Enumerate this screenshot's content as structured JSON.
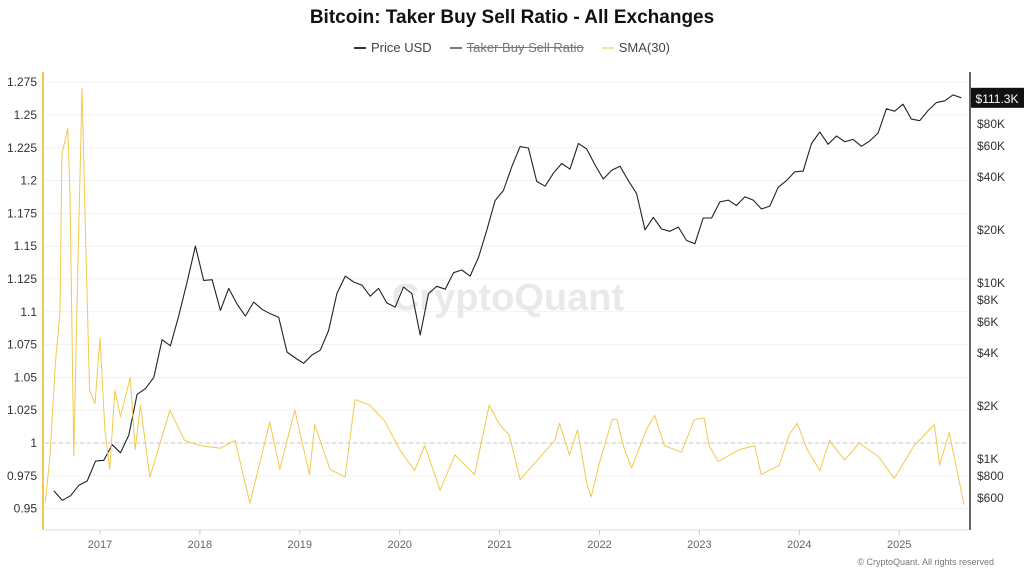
{
  "chart_data": {
    "type": "line",
    "title": "Bitcoin: Taker Buy Sell Ratio - All Exchanges",
    "legend": [
      {
        "name": "Price USD",
        "color": "#333333",
        "hidden": false
      },
      {
        "name": "Taker Buy Sell Ratio",
        "color": "#555555",
        "hidden": true
      },
      {
        "name": "SMA(30)",
        "color": "#f2c94c",
        "hidden": false
      }
    ],
    "legend_placement": "top-center",
    "watermark": "CryptoQuant",
    "copyright": "© CryptoQuant. All rights reserved",
    "x_ticks": [
      "2017",
      "2018",
      "2019",
      "2020",
      "2021",
      "2022",
      "2023",
      "2024",
      "2025"
    ],
    "left_axis": {
      "ticks": [
        "0.95",
        "0.975",
        "1",
        "1.025",
        "1.05",
        "1.075",
        "1.1",
        "1.125",
        "1.15",
        "1.175",
        "1.2",
        "1.225",
        "1.25",
        "1.275"
      ],
      "range": [
        0.94,
        1.29
      ],
      "reference_line": 1
    },
    "right_axis": {
      "scale": "log",
      "ticks": [
        {
          "label": "$600",
          "value": 600
        },
        {
          "label": "$800",
          "value": 800
        },
        {
          "label": "$1K",
          "value": 1000
        },
        {
          "label": "$2K",
          "value": 2000
        },
        {
          "label": "$4K",
          "value": 4000
        },
        {
          "label": "$6K",
          "value": 6000
        },
        {
          "label": "$8K",
          "value": 8000
        },
        {
          "label": "$10K",
          "value": 10000
        },
        {
          "label": "$20K",
          "value": 20000
        },
        {
          "label": "$40K",
          "value": 40000
        },
        {
          "label": "$60K",
          "value": 60000
        },
        {
          "label": "$80K",
          "value": 80000
        }
      ],
      "current_label": "$111.3K",
      "current_value": 111300
    },
    "grid": true,
    "series": [
      {
        "name": "Price USD",
        "axis": "right",
        "points": [
          [
            "2016-07",
            650
          ],
          [
            "2016-08",
            575
          ],
          [
            "2016-09",
            610
          ],
          [
            "2016-10",
            700
          ],
          [
            "2016-11",
            740
          ],
          [
            "2016-12",
            960
          ],
          [
            "2017-01",
            970
          ],
          [
            "2017-02",
            1190
          ],
          [
            "2017-03",
            1070
          ],
          [
            "2017-04",
            1350
          ],
          [
            "2017-05",
            2300
          ],
          [
            "2017-06",
            2480
          ],
          [
            "2017-07",
            2870
          ],
          [
            "2017-08",
            4700
          ],
          [
            "2017-09",
            4340
          ],
          [
            "2017-10",
            6450
          ],
          [
            "2017-11",
            10000
          ],
          [
            "2017-12",
            16000
          ],
          [
            "2018-01",
            10200
          ],
          [
            "2018-02",
            10300
          ],
          [
            "2018-03",
            6900
          ],
          [
            "2018-04",
            9200
          ],
          [
            "2018-05",
            7500
          ],
          [
            "2018-06",
            6400
          ],
          [
            "2018-07",
            7700
          ],
          [
            "2018-08",
            7000
          ],
          [
            "2018-09",
            6600
          ],
          [
            "2018-10",
            6300
          ],
          [
            "2018-11",
            4000
          ],
          [
            "2018-12",
            3700
          ],
          [
            "2019-01",
            3450
          ],
          [
            "2019-02",
            3850
          ],
          [
            "2019-03",
            4100
          ],
          [
            "2019-04",
            5300
          ],
          [
            "2019-05",
            8600
          ],
          [
            "2019-06",
            10800
          ],
          [
            "2019-07",
            10000
          ],
          [
            "2019-08",
            9600
          ],
          [
            "2019-09",
            8300
          ],
          [
            "2019-10",
            9200
          ],
          [
            "2019-11",
            7600
          ],
          [
            "2019-12",
            7200
          ],
          [
            "2020-01",
            9350
          ],
          [
            "2020-02",
            8600
          ],
          [
            "2020-03",
            5000
          ],
          [
            "2020-04",
            8600
          ],
          [
            "2020-05",
            9450
          ],
          [
            "2020-06",
            9100
          ],
          [
            "2020-07",
            11300
          ],
          [
            "2020-08",
            11700
          ],
          [
            "2020-09",
            10800
          ],
          [
            "2020-10",
            13800
          ],
          [
            "2020-11",
            19700
          ],
          [
            "2020-12",
            29000
          ],
          [
            "2021-01",
            33100
          ],
          [
            "2021-02",
            45200
          ],
          [
            "2021-03",
            58800
          ],
          [
            "2021-04",
            57700
          ],
          [
            "2021-05",
            37300
          ],
          [
            "2021-06",
            35000
          ],
          [
            "2021-07",
            41500
          ],
          [
            "2021-08",
            47100
          ],
          [
            "2021-09",
            43800
          ],
          [
            "2021-10",
            61300
          ],
          [
            "2021-11",
            57000
          ],
          [
            "2021-12",
            46300
          ],
          [
            "2022-01",
            38500
          ],
          [
            "2022-02",
            43200
          ],
          [
            "2022-03",
            45500
          ],
          [
            "2022-04",
            37700
          ],
          [
            "2022-05",
            31800
          ],
          [
            "2022-06",
            19800
          ],
          [
            "2022-07",
            23300
          ],
          [
            "2022-08",
            20000
          ],
          [
            "2022-09",
            19400
          ],
          [
            "2022-10",
            20500
          ],
          [
            "2022-11",
            17200
          ],
          [
            "2022-12",
            16500
          ],
          [
            "2023-01",
            23100
          ],
          [
            "2023-02",
            23100
          ],
          [
            "2023-03",
            28500
          ],
          [
            "2023-04",
            29200
          ],
          [
            "2023-05",
            27200
          ],
          [
            "2023-06",
            30500
          ],
          [
            "2023-07",
            29200
          ],
          [
            "2023-08",
            26000
          ],
          [
            "2023-09",
            27000
          ],
          [
            "2023-10",
            34500
          ],
          [
            "2023-11",
            37700
          ],
          [
            "2023-12",
            42300
          ],
          [
            "2024-01",
            42600
          ],
          [
            "2024-02",
            61200
          ],
          [
            "2024-03",
            71300
          ],
          [
            "2024-04",
            60600
          ],
          [
            "2024-05",
            67500
          ],
          [
            "2024-06",
            62700
          ],
          [
            "2024-07",
            64600
          ],
          [
            "2024-08",
            59000
          ],
          [
            "2024-09",
            63300
          ],
          [
            "2024-10",
            70200
          ],
          [
            "2024-11",
            96400
          ],
          [
            "2024-12",
            93400
          ],
          [
            "2025-01",
            102400
          ],
          [
            "2025-02",
            84300
          ],
          [
            "2025-03",
            82500
          ],
          [
            "2025-04",
            94200
          ],
          [
            "2025-05",
            104600
          ],
          [
            "2025-06",
            107100
          ],
          [
            "2025-07",
            115700
          ],
          [
            "2025-08",
            111300
          ]
        ]
      },
      {
        "name": "SMA(30)",
        "axis": "left",
        "points": [
          [
            "2016-06-14",
            0.955
          ],
          [
            "2016-07-01",
            0.99
          ],
          [
            "2016-07-20",
            1.06
          ],
          [
            "2016-08-07",
            1.1
          ],
          [
            "2016-08-14",
            1.22
          ],
          [
            "2016-09-05",
            1.24
          ],
          [
            "2016-09-13",
            1.19
          ],
          [
            "2016-09-27",
            0.99
          ],
          [
            "2016-10-12",
            1.14
          ],
          [
            "2016-10-27",
            1.27
          ],
          [
            "2016-11-10",
            1.15
          ],
          [
            "2016-11-24",
            1.04
          ],
          [
            "2016-12-13",
            1.03
          ],
          [
            "2017-01-01",
            1.08
          ],
          [
            "2017-01-19",
            1.01
          ],
          [
            "2017-02-06",
            0.98
          ],
          [
            "2017-02-25",
            1.04
          ],
          [
            "2017-03-15",
            1.02
          ],
          [
            "2017-04-20",
            1.05
          ],
          [
            "2017-05-08",
            0.995
          ],
          [
            "2017-05-27",
            1.029
          ],
          [
            "2017-07-01",
            0.974
          ],
          [
            "2017-09-13",
            1.025
          ],
          [
            "2017-11-06",
            1.002
          ],
          [
            "2018-01-01",
            0.998
          ],
          [
            "2018-03-15",
            0.996
          ],
          [
            "2018-05-08",
            1.002
          ],
          [
            "2018-07-01",
            0.954
          ],
          [
            "2018-09-13",
            1.016
          ],
          [
            "2018-10-19",
            0.98
          ],
          [
            "2018-12-13",
            1.025
          ],
          [
            "2019-02-06",
            0.976
          ],
          [
            "2019-02-25",
            1.014
          ],
          [
            "2019-04-20",
            0.98
          ],
          [
            "2019-06-14",
            0.974
          ],
          [
            "2019-07-20",
            1.033
          ],
          [
            "2019-09-13",
            1.029
          ],
          [
            "2019-11-06",
            1.017
          ],
          [
            "2020-01-01",
            0.995
          ],
          [
            "2020-02-25",
            0.979
          ],
          [
            "2020-04-01",
            0.998
          ],
          [
            "2020-05-27",
            0.964
          ],
          [
            "2020-07-20",
            0.991
          ],
          [
            "2020-10-01",
            0.976
          ],
          [
            "2020-11-24",
            1.029
          ],
          [
            "2021-01-01",
            1.014
          ],
          [
            "2021-02-06",
            1.006
          ],
          [
            "2021-03-15",
            0.972
          ],
          [
            "2021-07-20",
            1.002
          ],
          [
            "2021-08-07",
            1.015
          ],
          [
            "2021-09-13",
            0.991
          ],
          [
            "2021-10-12",
            1.01
          ],
          [
            "2021-11-17",
            0.968
          ],
          [
            "2021-12-01",
            0.959
          ],
          [
            "2022-01-01",
            0.985
          ],
          [
            "2022-02-17",
            1.018
          ],
          [
            "2022-03-03",
            1.018
          ],
          [
            "2022-04-01",
            0.995
          ],
          [
            "2022-04-27",
            0.981
          ],
          [
            "2022-06-20",
            1.01
          ],
          [
            "2022-07-20",
            1.021
          ],
          [
            "2022-08-25",
            0.998
          ],
          [
            "2022-10-27",
            0.993
          ],
          [
            "2022-12-13",
            1.018
          ],
          [
            "2023-01-19",
            1.019
          ],
          [
            "2023-02-06",
            0.998
          ],
          [
            "2023-03-08",
            0.986
          ],
          [
            "2023-05-27",
            0.995
          ],
          [
            "2023-07-20",
            0.998
          ],
          [
            "2023-08-14",
            0.976
          ],
          [
            "2023-10-19",
            0.983
          ],
          [
            "2023-11-24",
            1.006
          ],
          [
            "2023-12-24",
            1.015
          ],
          [
            "2024-01-30",
            0.995
          ],
          [
            "2024-03-15",
            0.979
          ],
          [
            "2024-04-20",
            1.002
          ],
          [
            "2024-06-14",
            0.987
          ],
          [
            "2024-07-01",
            0.991
          ],
          [
            "2024-08-07",
            1.0
          ],
          [
            "2024-10-19",
            0.989
          ],
          [
            "2024-12-13",
            0.973
          ],
          [
            "2025-02-25",
            0.998
          ],
          [
            "2025-05-08",
            1.014
          ],
          [
            "2025-05-27",
            0.983
          ],
          [
            "2025-07-01",
            1.008
          ],
          [
            "2025-08-25",
            0.953
          ]
        ]
      }
    ]
  }
}
